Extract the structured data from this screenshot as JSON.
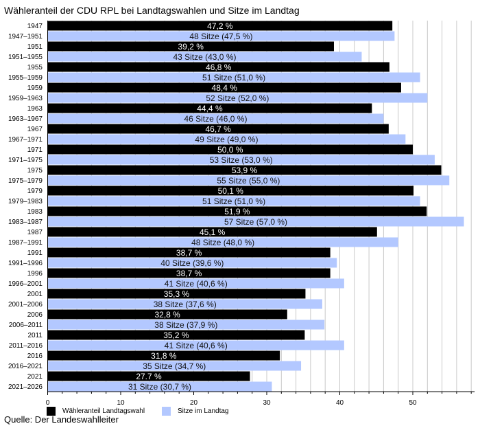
{
  "chart_data": {
    "type": "bar",
    "orientation": "horizontal",
    "title": "Wähleranteil der CDU RPL bei Landtagswahlen und Sitze im Landtag",
    "source": "Quelle: Der Landeswahlleiter",
    "xlim": [
      0,
      58
    ],
    "xticks": [
      0,
      10,
      20,
      30,
      40,
      50
    ],
    "grid": true,
    "legend_position": "bottom-left",
    "colors": {
      "vote": "#000000",
      "seats": "#b3c8ff"
    },
    "legend": [
      "Wähleranteil Landtagswahl",
      "Sitze im Landtag"
    ],
    "rows": [
      {
        "category": "1947",
        "series": "vote",
        "value": 47.2,
        "label": "47,2 %"
      },
      {
        "category": "1947–1951",
        "series": "seats",
        "value": 47.5,
        "label": "48 Sitze (47,5 %)"
      },
      {
        "category": "1951",
        "series": "vote",
        "value": 39.2,
        "label": "39,2 %"
      },
      {
        "category": "1951–1955",
        "series": "seats",
        "value": 43.0,
        "label": "43 Sitze (43,0 %)"
      },
      {
        "category": "1955",
        "series": "vote",
        "value": 46.8,
        "label": "46,8 %"
      },
      {
        "category": "1955–1959",
        "series": "seats",
        "value": 51.0,
        "label": "51 Sitze (51,0 %)"
      },
      {
        "category": "1959",
        "series": "vote",
        "value": 48.4,
        "label": "48,4 %"
      },
      {
        "category": "1959–1963",
        "series": "seats",
        "value": 52.0,
        "label": "52 Sitze (52,0 %)"
      },
      {
        "category": "1963",
        "series": "vote",
        "value": 44.4,
        "label": "44,4 %"
      },
      {
        "category": "1963–1967",
        "series": "seats",
        "value": 46.0,
        "label": "46 Sitze (46,0 %)"
      },
      {
        "category": "1967",
        "series": "vote",
        "value": 46.7,
        "label": "46,7 %"
      },
      {
        "category": "1967–1971",
        "series": "seats",
        "value": 49.0,
        "label": "49 Sitze (49,0 %)"
      },
      {
        "category": "1971",
        "series": "vote",
        "value": 50.0,
        "label": "50,0 %"
      },
      {
        "category": "1971–1975",
        "series": "seats",
        "value": 53.0,
        "label": "53 Sitze (53,0 %)"
      },
      {
        "category": "1975",
        "series": "vote",
        "value": 53.9,
        "label": "53,9 %"
      },
      {
        "category": "1975–1979",
        "series": "seats",
        "value": 55.0,
        "label": "55 Sitze (55,0 %)"
      },
      {
        "category": "1979",
        "series": "vote",
        "value": 50.1,
        "label": "50,1 %"
      },
      {
        "category": "1979–1983",
        "series": "seats",
        "value": 51.0,
        "label": "51 Sitze (51,0 %)"
      },
      {
        "category": "1983",
        "series": "vote",
        "value": 51.9,
        "label": "51,9 %"
      },
      {
        "category": "1983–1987",
        "series": "seats",
        "value": 57.0,
        "label": "57 Sitze (57,0 %)"
      },
      {
        "category": "1987",
        "series": "vote",
        "value": 45.1,
        "label": "45,1 %"
      },
      {
        "category": "1987–1991",
        "series": "seats",
        "value": 48.0,
        "label": "48 Sitze (48,0 %)"
      },
      {
        "category": "1991",
        "series": "vote",
        "value": 38.7,
        "label": "38,7 %"
      },
      {
        "category": "1991–1996",
        "series": "seats",
        "value": 39.6,
        "label": "40 Sitze (39,6 %)"
      },
      {
        "category": "1996",
        "series": "vote",
        "value": 38.7,
        "label": "38,7 %"
      },
      {
        "category": "1996–2001",
        "series": "seats",
        "value": 40.6,
        "label": "41 Sitze (40,6 %)"
      },
      {
        "category": "2001",
        "series": "vote",
        "value": 35.3,
        "label": "35,3 %"
      },
      {
        "category": "2001–2006",
        "series": "seats",
        "value": 37.6,
        "label": "38 Sitze (37,6 %)"
      },
      {
        "category": "2006",
        "series": "vote",
        "value": 32.8,
        "label": "32,8 %"
      },
      {
        "category": "2006–2011",
        "series": "seats",
        "value": 37.9,
        "label": "38 Sitze (37,9 %)"
      },
      {
        "category": "2011",
        "series": "vote",
        "value": 35.2,
        "label": "35,2 %"
      },
      {
        "category": "2011–2016",
        "series": "seats",
        "value": 40.6,
        "label": "41 Sitze (40,6 %)"
      },
      {
        "category": "2016",
        "series": "vote",
        "value": 31.8,
        "label": "31,8 %"
      },
      {
        "category": "2016–2021",
        "series": "seats",
        "value": 34.7,
        "label": "35 Sitze (34,7 %)"
      },
      {
        "category": "2021",
        "series": "vote",
        "value": 27.7,
        "label": "27.7  %"
      },
      {
        "category": "2021–2026",
        "series": "seats",
        "value": 30.7,
        "label": "31 Sitze (30,7 %)"
      }
    ]
  }
}
